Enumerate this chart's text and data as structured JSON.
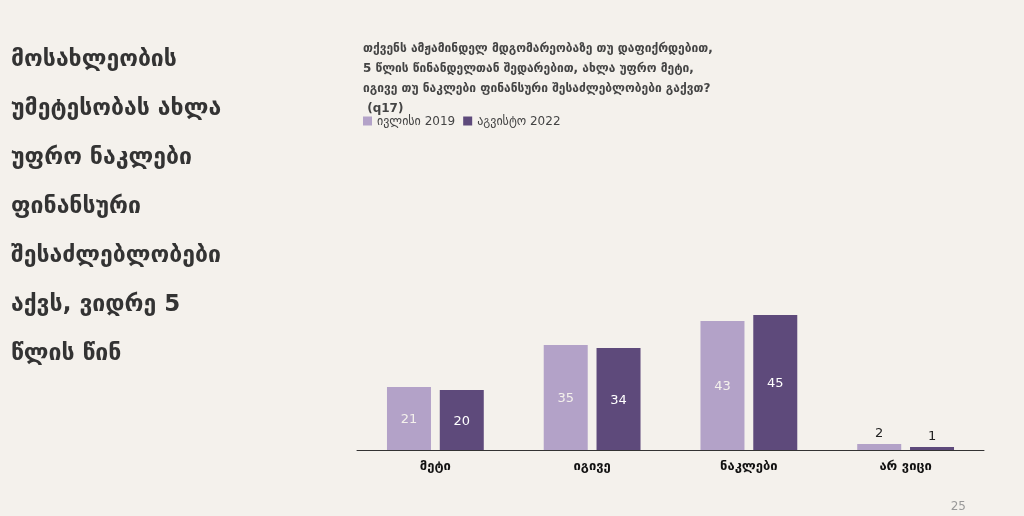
{
  "chart_data": {
    "type": "bar",
    "title": "მოსახლეობის უმეტესობას ახლა უფრო ნაკლები ფინანსური შესაძლებლობები აქვს, ვიდრე 5 წლის წინ",
    "subtitle": "თქვენს ამჟამინდელ მდგომარეობაზე თუ დაფიქრდებით, 5 წლის წინანდელთან შედარებით, ახლა უფრო მეტი, იგივე თუ ნაკლები ფინანსური შესაძლებლობები გაქვთ? (q17)",
    "categories": [
      "მეტი",
      "იგივე",
      "ნაკლები",
      "არ ვიცი"
    ],
    "series": [
      {
        "name": "ივლისი 2019",
        "color": "#b3a2c8",
        "values": [
          21,
          35,
          43,
          2
        ]
      },
      {
        "name": "აგვისტო 2022",
        "color": "#5e4a7b",
        "values": [
          20,
          34,
          45,
          1
        ]
      }
    ],
    "data_labels": true,
    "legend": "top left",
    "annotations": [
      "25"
    ]
  }
}
